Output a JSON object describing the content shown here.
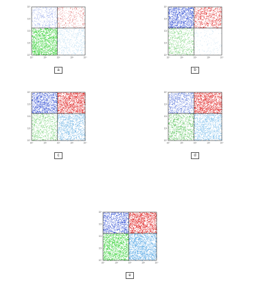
{
  "chart_data": [
    {
      "type": "scatter",
      "panel": "a",
      "title": "",
      "xlabel": "",
      "ylabel": "",
      "x_scale": "log",
      "y_scale": "log",
      "xlim": [
        1,
        10000
      ],
      "ylim": [
        1,
        10000
      ],
      "quadrants": [
        {
          "position": "upper-left",
          "label": "",
          "color": "#8fa3e8",
          "density": 0.35
        },
        {
          "position": "upper-right",
          "label": "",
          "color": "#e06060",
          "density": 0.25
        },
        {
          "position": "lower-left",
          "label": "",
          "color": "#22cc22",
          "density": 0.95
        },
        {
          "position": "lower-right",
          "label": "",
          "color": "#a8d4f0",
          "density": 0.3
        }
      ]
    },
    {
      "type": "scatter",
      "panel": "b",
      "title": "",
      "xlabel": "",
      "ylabel": "",
      "x_scale": "log",
      "y_scale": "log",
      "xlim": [
        1,
        10000
      ],
      "ylim": [
        1,
        10000
      ],
      "quadrants": [
        {
          "position": "upper-left",
          "label": "",
          "color": "#2040d0",
          "density": 0.9
        },
        {
          "position": "upper-right",
          "label": "",
          "color": "#dd1111",
          "density": 0.55
        },
        {
          "position": "lower-left",
          "label": "",
          "color": "#66cc66",
          "density": 0.45
        },
        {
          "position": "lower-right",
          "label": "",
          "color": "#bcdcf0",
          "density": 0.1
        }
      ]
    },
    {
      "type": "scatter",
      "panel": "c",
      "title": "",
      "xlabel": "",
      "ylabel": "",
      "x_scale": "log",
      "y_scale": "log",
      "xlim": [
        1,
        10000
      ],
      "ylim": [
        1,
        10000
      ],
      "quadrants": [
        {
          "position": "upper-left",
          "label": "",
          "color": "#2040d0",
          "density": 0.85
        },
        {
          "position": "upper-right",
          "label": "",
          "color": "#dd1111",
          "density": 1.0
        },
        {
          "position": "lower-left",
          "label": "",
          "color": "#66cc66",
          "density": 0.5
        },
        {
          "position": "lower-right",
          "label": "",
          "color": "#5aa8e0",
          "density": 0.6
        }
      ]
    },
    {
      "type": "scatter",
      "panel": "d",
      "title": "",
      "xlabel": "",
      "ylabel": "",
      "x_scale": "log",
      "y_scale": "log",
      "xlim": [
        1,
        10000
      ],
      "ylim": [
        1,
        10000
      ],
      "quadrants": [
        {
          "position": "upper-left",
          "label": "",
          "color": "#4a6ad8",
          "density": 0.6
        },
        {
          "position": "upper-right",
          "label": "",
          "color": "#dd1111",
          "density": 1.0
        },
        {
          "position": "lower-left",
          "label": "",
          "color": "#44bb44",
          "density": 0.55
        },
        {
          "position": "lower-right",
          "label": "",
          "color": "#6ab4e8",
          "density": 0.65
        }
      ]
    },
    {
      "type": "scatter",
      "panel": "e",
      "title": "",
      "xlabel": "",
      "ylabel": "",
      "x_scale": "log",
      "y_scale": "log",
      "xlim": [
        1,
        10000
      ],
      "ylim": [
        1,
        10000
      ],
      "quadrants": [
        {
          "position": "upper-left",
          "label": "",
          "color": "#2040d0",
          "density": 0.75
        },
        {
          "position": "upper-right",
          "label": "",
          "color": "#dd1111",
          "density": 1.0
        },
        {
          "position": "lower-left",
          "label": "",
          "color": "#22cc22",
          "density": 0.9
        },
        {
          "position": "lower-right",
          "label": "",
          "color": "#3a98e0",
          "density": 0.85
        }
      ]
    }
  ],
  "panels": [
    {
      "box_label": "a"
    },
    {
      "box_label": "b"
    },
    {
      "box_label": "c"
    },
    {
      "box_label": "d"
    },
    {
      "box_label": "e"
    }
  ],
  "axis_ticks": [
    "10⁰",
    "10¹",
    "10²",
    "10³",
    "10⁴"
  ]
}
